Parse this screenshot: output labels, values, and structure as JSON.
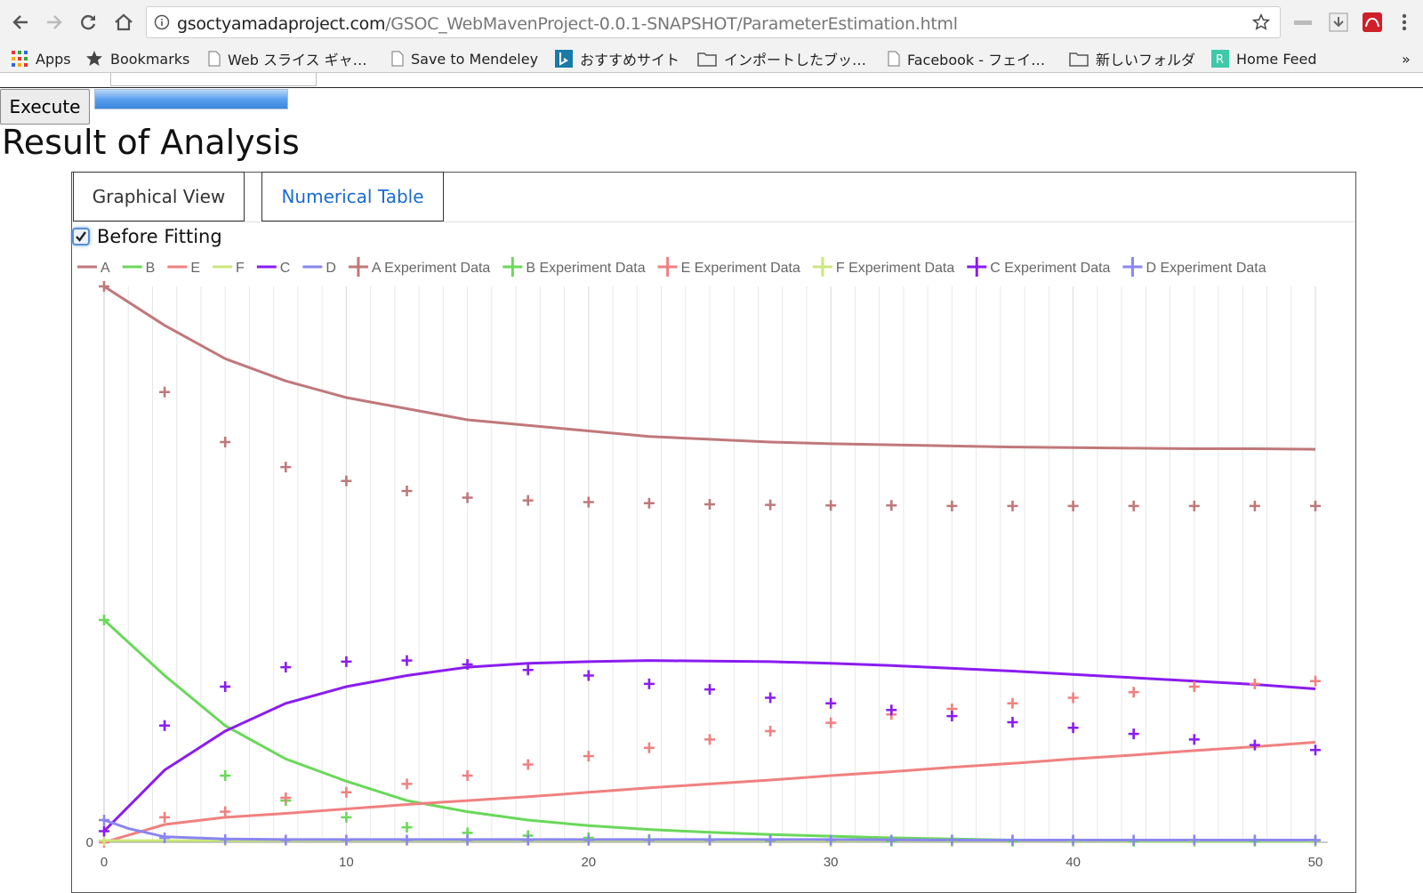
{
  "browser": {
    "url_host": "gsoctyamadaproject.com",
    "url_path": "/GSOC_WebMavenProject-0.0.1-SNAPSHOT/ParameterEstimation.html",
    "icons": [
      "back-icon",
      "forward-icon",
      "reload-icon",
      "home-icon",
      "info-icon",
      "star-icon",
      "extension-icon",
      "download-icon",
      "mendeley-icon",
      "menu-icon"
    ],
    "bookmarks": [
      {
        "label": "Apps",
        "icon": "apps-icon"
      },
      {
        "label": "Bookmarks",
        "icon": "star-icon"
      },
      {
        "label": "Web スライス ギャ…",
        "icon": "page-icon"
      },
      {
        "label": "Save to Mendeley",
        "icon": "page-icon"
      },
      {
        "label": "おすすめサイト",
        "icon": "bing-icon"
      },
      {
        "label": "インポートしたブッ…",
        "icon": "folder-icon"
      },
      {
        "label": "Facebook - フェイ…",
        "icon": "page-icon"
      },
      {
        "label": "新しいフォルダ",
        "icon": "folder-icon"
      },
      {
        "label": "Home Feed",
        "icon": "feed-icon"
      }
    ],
    "overflow": "»"
  },
  "page": {
    "execute_label": "Execute",
    "progress": 1.0,
    "result_title": "Result of Analysis",
    "tabs": [
      {
        "label": "Graphical View"
      },
      {
        "label": "Numerical Table"
      }
    ],
    "before_fitting_label": "Before Fitting",
    "before_fitting_checked": true
  },
  "chart_data": {
    "type": "line",
    "xlim": [
      0,
      50
    ],
    "x_ticks": [
      0,
      10,
      20,
      30,
      40,
      50
    ],
    "y_ticks": [
      0
    ],
    "grid": true,
    "legend_placement": "top",
    "lines": [
      {
        "name": "A",
        "color": "#c0787a",
        "x": [
          0,
          2.5,
          5,
          7.5,
          10,
          12.5,
          15,
          17.5,
          20,
          22.5,
          25,
          27.5,
          30,
          32.5,
          35,
          37.5,
          40,
          42.5,
          45,
          47.5,
          50
        ],
        "y": [
          1.0,
          0.93,
          0.87,
          0.83,
          0.8,
          0.78,
          0.76,
          0.75,
          0.74,
          0.73,
          0.725,
          0.72,
          0.717,
          0.715,
          0.713,
          0.711,
          0.71,
          0.709,
          0.708,
          0.708,
          0.707
        ]
      },
      {
        "name": "B",
        "color": "#6ad85a",
        "x": [
          0,
          2.5,
          5,
          7.5,
          10,
          12.5,
          15,
          17.5,
          20,
          22.5,
          25,
          27.5,
          30,
          32.5,
          35,
          37.5,
          40,
          42.5,
          45,
          47.5,
          50
        ],
        "y": [
          0.4,
          0.3,
          0.21,
          0.15,
          0.11,
          0.075,
          0.055,
          0.04,
          0.03,
          0.023,
          0.018,
          0.014,
          0.011,
          0.008,
          0.006,
          0.004,
          0.003,
          0.002,
          0.002,
          0.002,
          0.002
        ]
      },
      {
        "name": "E",
        "color": "#f08080",
        "x": [
          0,
          2.5,
          5,
          7.5,
          10,
          12.5,
          15,
          17.5,
          20,
          22.5,
          25,
          27.5,
          30,
          32.5,
          35,
          37.5,
          40,
          42.5,
          45,
          47.5,
          50
        ],
        "y": [
          0,
          0.032,
          0.045,
          0.052,
          0.06,
          0.068,
          0.075,
          0.082,
          0.09,
          0.098,
          0.105,
          0.112,
          0.12,
          0.127,
          0.135,
          0.142,
          0.15,
          0.157,
          0.165,
          0.172,
          0.18
        ]
      },
      {
        "name": "F",
        "color": "#cce87a",
        "x": [
          0,
          50
        ],
        "y": [
          0.003,
          0.003
        ]
      },
      {
        "name": "C",
        "color": "#8a1cf0",
        "x": [
          0,
          2.5,
          5,
          7.5,
          10,
          12.5,
          15,
          17.5,
          20,
          22.5,
          25,
          27.5,
          30,
          32.5,
          35,
          37.5,
          40,
          42.5,
          45,
          47.5,
          50
        ],
        "y": [
          0.02,
          0.13,
          0.2,
          0.25,
          0.28,
          0.3,
          0.315,
          0.322,
          0.325,
          0.327,
          0.326,
          0.325,
          0.322,
          0.318,
          0.313,
          0.308,
          0.302,
          0.296,
          0.29,
          0.284,
          0.276
        ]
      },
      {
        "name": "D",
        "color": "#8a86f0",
        "x": [
          0,
          1,
          2.5,
          5,
          7.5,
          10,
          12.5,
          15,
          20,
          25,
          30,
          35,
          40,
          45,
          50
        ],
        "y": [
          0.04,
          0.025,
          0.01,
          0.006,
          0.005,
          0.005,
          0.005,
          0.005,
          0.005,
          0.005,
          0.005,
          0.004,
          0.004,
          0.004,
          0.004
        ]
      }
    ],
    "points": [
      {
        "name": "A Experiment Data",
        "color": "#c0787a",
        "x": [
          0,
          2.5,
          5,
          7.5,
          10,
          12.5,
          15,
          17.5,
          20,
          22.5,
          25,
          27.5,
          30,
          32.5,
          35,
          37.5,
          40,
          42.5,
          45,
          47.5,
          50
        ],
        "y": [
          1.0,
          0.81,
          0.72,
          0.675,
          0.65,
          0.632,
          0.62,
          0.615,
          0.612,
          0.61,
          0.608,
          0.607,
          0.606,
          0.606,
          0.605,
          0.605,
          0.605,
          0.605,
          0.605,
          0.605,
          0.605
        ]
      },
      {
        "name": "B Experiment Data",
        "color": "#6ad85a",
        "x": [
          0,
          2.5,
          5,
          7.5,
          10,
          12.5,
          15,
          17.5,
          20,
          22.5,
          25,
          27.5,
          30,
          32.5,
          35,
          37.5,
          40,
          42.5,
          45,
          47.5,
          50
        ],
        "y": [
          0.4,
          0.21,
          0.12,
          0.075,
          0.045,
          0.027,
          0.017,
          0.012,
          0.008,
          0.005,
          0.004,
          0.003,
          0.002,
          0.002,
          0.002,
          0.002,
          0.002,
          0.002,
          0.002,
          0.002,
          0.002
        ]
      },
      {
        "name": "E Experiment Data",
        "color": "#f08080",
        "x": [
          0,
          2.5,
          5,
          7.5,
          10,
          12.5,
          15,
          17.5,
          20,
          22.5,
          25,
          27.5,
          30,
          32.5,
          35,
          37.5,
          40,
          42.5,
          45,
          47.5,
          50
        ],
        "y": [
          0.0,
          0.045,
          0.055,
          0.08,
          0.09,
          0.105,
          0.12,
          0.14,
          0.155,
          0.17,
          0.185,
          0.2,
          0.215,
          0.23,
          0.24,
          0.25,
          0.26,
          0.27,
          0.28,
          0.285,
          0.29
        ]
      },
      {
        "name": "F Experiment Data",
        "color": "#cce87a",
        "x": [
          0,
          5,
          10,
          15,
          20,
          25,
          30,
          35,
          40,
          45,
          50
        ],
        "y": [
          0.003,
          0.003,
          0.003,
          0.003,
          0.003,
          0.003,
          0.003,
          0.003,
          0.003,
          0.003,
          0.003
        ]
      },
      {
        "name": "C Experiment Data",
        "color": "#8a1cf0",
        "x": [
          0,
          2.5,
          5,
          7.5,
          10,
          12.5,
          15,
          17.5,
          20,
          22.5,
          25,
          27.5,
          30,
          32.5,
          35,
          37.5,
          40,
          42.5,
          45,
          47.5,
          50
        ],
        "y": [
          0.02,
          0.21,
          0.28,
          0.315,
          0.325,
          0.327,
          0.32,
          0.31,
          0.3,
          0.285,
          0.275,
          0.26,
          0.25,
          0.238,
          0.227,
          0.216,
          0.206,
          0.195,
          0.185,
          0.175,
          0.166
        ]
      },
      {
        "name": "D Experiment Data",
        "color": "#8a86f0",
        "x": [
          0,
          2.5,
          5,
          7.5,
          10,
          12.5,
          15,
          17.5,
          20,
          22.5,
          25,
          27.5,
          30,
          32.5,
          35,
          37.5,
          40,
          42.5,
          45,
          47.5,
          50
        ],
        "y": [
          0.04,
          0.008,
          0.005,
          0.004,
          0.004,
          0.004,
          0.004,
          0.004,
          0.004,
          0.004,
          0.004,
          0.004,
          0.004,
          0.004,
          0.004,
          0.004,
          0.004,
          0.004,
          0.004,
          0.004,
          0.004
        ]
      }
    ]
  }
}
